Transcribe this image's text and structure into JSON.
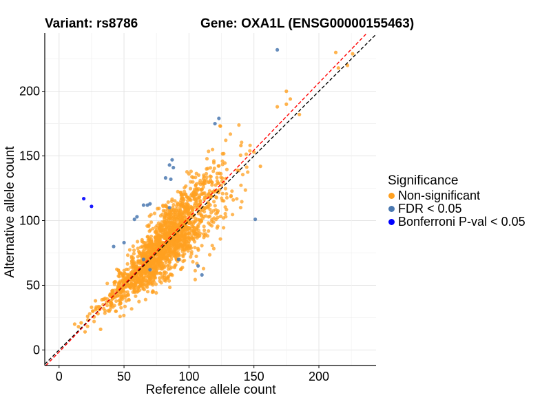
{
  "titles": {
    "variant": "Variant: rs8786",
    "gene": "Gene: OXA1L (ENSG00000155463)"
  },
  "legend": {
    "title": "Significance",
    "items": [
      {
        "label": "Non-significant",
        "color": "#FFA020"
      },
      {
        "label": "FDR < 0.05",
        "color": "#4A78B0"
      },
      {
        "label": "Bonferroni P-val < 0.05",
        "color": "#0000FF"
      }
    ]
  },
  "chart_data": {
    "type": "scatter",
    "title": "Variant: rs8786    Gene: OXA1L (ENSG00000155463)",
    "xlabel": "Reference allele count",
    "ylabel": "Alternative allele count",
    "xlim": [
      -11,
      244
    ],
    "ylim": [
      -12,
      245
    ],
    "xticks": [
      0,
      50,
      100,
      150,
      200
    ],
    "yticks": [
      0,
      50,
      100,
      150,
      200
    ],
    "grid": true,
    "reference_lines": [
      {
        "name": "identity",
        "slope": 1.0,
        "intercept": 0,
        "color": "#000000",
        "style": "dashed"
      },
      {
        "name": "fit",
        "slope": 1.04,
        "intercept": -1.5,
        "color": "#FF0000",
        "style": "dashed"
      }
    ],
    "non_significant": {
      "name": "Non-significant",
      "color": "#FFA020",
      "count": 1800,
      "distribution": {
        "x_mean": 82,
        "x_sd": 21,
        "ratio_sd": 0.15
      },
      "extreme_points": [
        [
          213,
          230
        ],
        [
          226,
          229
        ],
        [
          222,
          220
        ],
        [
          215,
          218
        ],
        [
          178,
          194
        ],
        [
          175,
          190
        ],
        [
          185,
          182
        ],
        [
          168,
          188
        ],
        [
          175,
          200
        ],
        [
          150,
          153
        ],
        [
          140,
          158
        ],
        [
          155,
          142
        ],
        [
          12,
          20
        ],
        [
          15,
          18
        ],
        [
          17,
          21
        ],
        [
          20,
          14
        ],
        [
          22,
          26
        ],
        [
          25,
          33
        ],
        [
          28,
          38
        ],
        [
          32,
          16
        ],
        [
          30,
          28
        ],
        [
          26,
          30
        ],
        [
          40,
          35
        ]
      ]
    },
    "fdr": {
      "name": "FDR < 0.05",
      "color": "#4A78B0",
      "points": [
        [
          168,
          232
        ],
        [
          123,
          179
        ],
        [
          120,
          175
        ],
        [
          87,
          147
        ],
        [
          85,
          143
        ],
        [
          88,
          141
        ],
        [
          82,
          133
        ],
        [
          86,
          132
        ],
        [
          65,
          112
        ],
        [
          68,
          112
        ],
        [
          70,
          113
        ],
        [
          60,
          103
        ],
        [
          58,
          101
        ],
        [
          85,
          110
        ],
        [
          151,
          101
        ],
        [
          50,
          83
        ],
        [
          42,
          80
        ],
        [
          65,
          70
        ],
        [
          70,
          62
        ],
        [
          107,
          65
        ],
        [
          110,
          58
        ],
        [
          92,
          70
        ]
      ]
    },
    "bonferroni": {
      "name": "Bonferroni P-val < 0.05",
      "color": "#0000FF",
      "points": [
        [
          19,
          117
        ],
        [
          25,
          111
        ]
      ]
    }
  }
}
